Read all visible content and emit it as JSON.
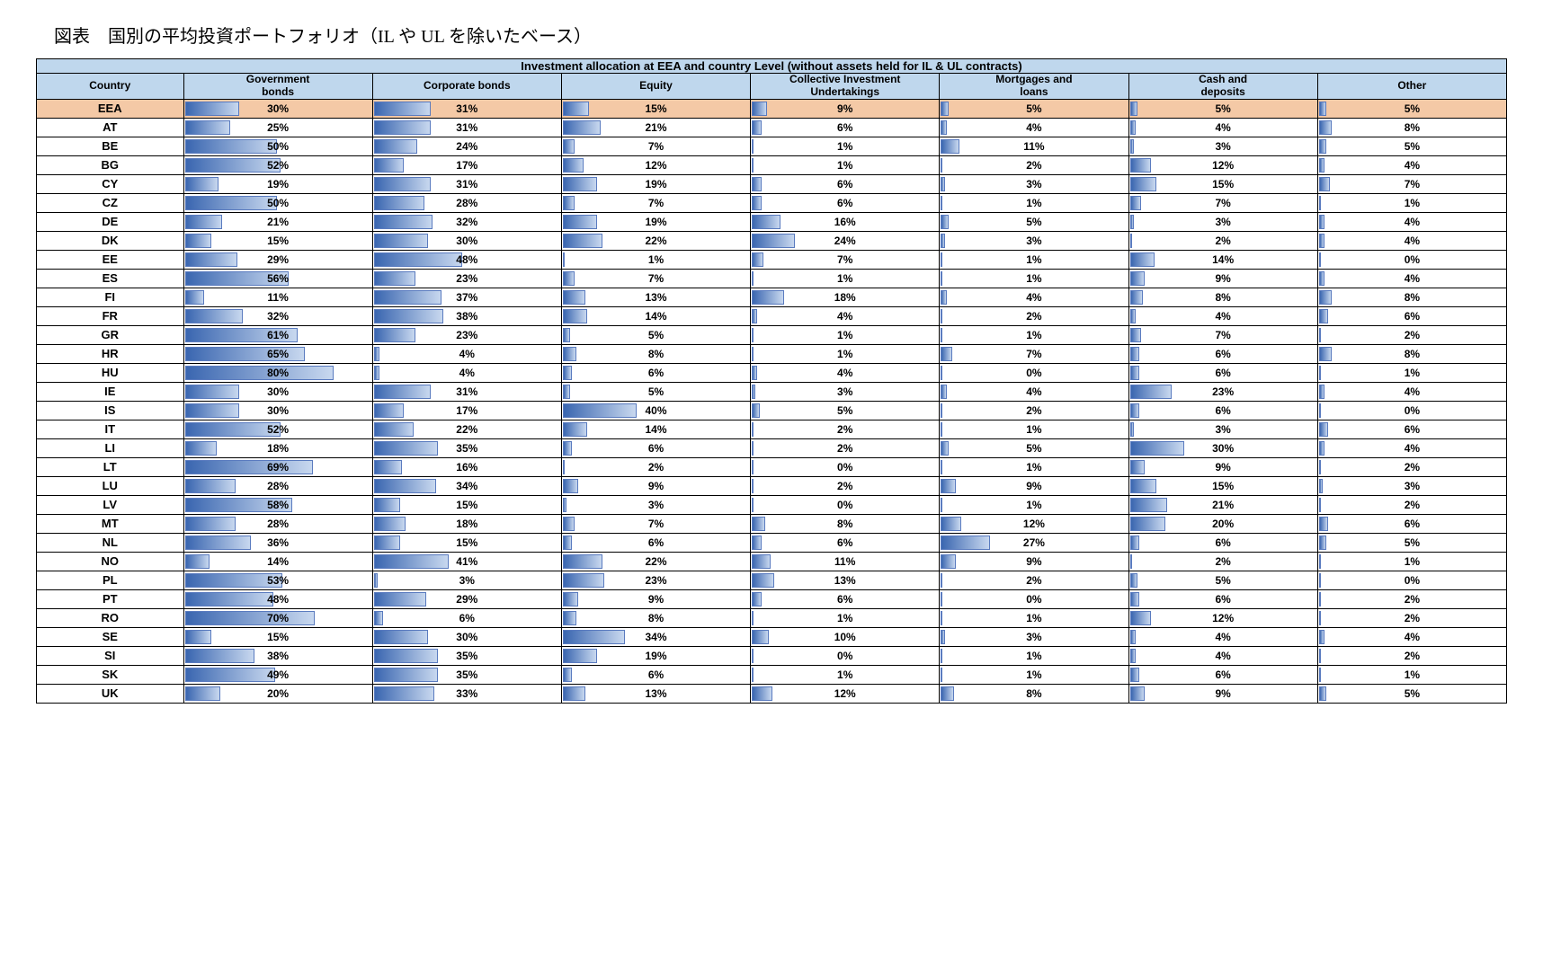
{
  "title_jp": "図表　国別の平均投資ポートフォリオ（IL や UL を除いたベース）",
  "banner": "Investment allocation at EEA and country Level (without assets held for IL & UL contracts)",
  "columns": [
    "Country",
    "Government bonds",
    "Corporate bonds",
    "Equity",
    "Collective Investment Undertakings",
    "Mortgages and loans",
    "Cash and deposits",
    "Other"
  ],
  "col_widths_pct": [
    10,
    12.857,
    12.857,
    12.857,
    12.857,
    12.857,
    12.857,
    12.857
  ],
  "colors": {
    "header_bg": "#bfd7ed",
    "eea_bg": "#f4c9a6",
    "row_bg": "#ffffff",
    "bar_grad_left": "#3a66b0",
    "bar_grad_right": "#c8d8ef",
    "bar_border": "#5a7bbf",
    "grid": "#000000"
  },
  "bar_max_scale": 100,
  "rows": [
    {
      "country": "EEA",
      "highlight": true,
      "values": [
        30,
        31,
        15,
        9,
        5,
        5,
        5
      ]
    },
    {
      "country": "AT",
      "values": [
        25,
        31,
        21,
        6,
        4,
        4,
        8
      ]
    },
    {
      "country": "BE",
      "values": [
        50,
        24,
        7,
        1,
        11,
        3,
        5
      ]
    },
    {
      "country": "BG",
      "values": [
        52,
        17,
        12,
        1,
        2,
        12,
        4
      ]
    },
    {
      "country": "CY",
      "values": [
        19,
        31,
        19,
        6,
        3,
        15,
        7
      ]
    },
    {
      "country": "CZ",
      "values": [
        50,
        28,
        7,
        6,
        1,
        7,
        1
      ]
    },
    {
      "country": "DE",
      "values": [
        21,
        32,
        19,
        16,
        5,
        3,
        4
      ]
    },
    {
      "country": "DK",
      "values": [
        15,
        30,
        22,
        24,
        3,
        2,
        4
      ]
    },
    {
      "country": "EE",
      "values": [
        29,
        48,
        1,
        7,
        1,
        14,
        0
      ]
    },
    {
      "country": "ES",
      "values": [
        56,
        23,
        7,
        1,
        1,
        9,
        4
      ]
    },
    {
      "country": "FI",
      "values": [
        11,
        37,
        13,
        18,
        4,
        8,
        8
      ]
    },
    {
      "country": "FR",
      "values": [
        32,
        38,
        14,
        4,
        2,
        4,
        6
      ]
    },
    {
      "country": "GR",
      "values": [
        61,
        23,
        5,
        1,
        1,
        7,
        2
      ]
    },
    {
      "country": "HR",
      "values": [
        65,
        4,
        8,
        1,
        7,
        6,
        8
      ]
    },
    {
      "country": "HU",
      "values": [
        80,
        4,
        6,
        4,
        0,
        6,
        1
      ]
    },
    {
      "country": "IE",
      "values": [
        30,
        31,
        5,
        3,
        4,
        23,
        4
      ]
    },
    {
      "country": "IS",
      "values": [
        30,
        17,
        40,
        5,
        2,
        6,
        0
      ]
    },
    {
      "country": "IT",
      "values": [
        52,
        22,
        14,
        2,
        1,
        3,
        6
      ]
    },
    {
      "country": "LI",
      "values": [
        18,
        35,
        6,
        2,
        5,
        30,
        4
      ]
    },
    {
      "country": "LT",
      "values": [
        69,
        16,
        2,
        0,
        1,
        9,
        2
      ]
    },
    {
      "country": "LU",
      "values": [
        28,
        34,
        9,
        2,
        9,
        15,
        3
      ]
    },
    {
      "country": "LV",
      "values": [
        58,
        15,
        3,
        0,
        1,
        21,
        2
      ]
    },
    {
      "country": "MT",
      "values": [
        28,
        18,
        7,
        8,
        12,
        20,
        6
      ]
    },
    {
      "country": "NL",
      "values": [
        36,
        15,
        6,
        6,
        27,
        6,
        5
      ]
    },
    {
      "country": "NO",
      "values": [
        14,
        41,
        22,
        11,
        9,
        2,
        1
      ]
    },
    {
      "country": "PL",
      "values": [
        53,
        3,
        23,
        13,
        2,
        5,
        0
      ]
    },
    {
      "country": "PT",
      "values": [
        48,
        29,
        9,
        6,
        0,
        6,
        2
      ]
    },
    {
      "country": "RO",
      "values": [
        70,
        6,
        8,
        1,
        1,
        12,
        2
      ]
    },
    {
      "country": "SE",
      "values": [
        15,
        30,
        34,
        10,
        3,
        4,
        4
      ]
    },
    {
      "country": "SI",
      "values": [
        38,
        35,
        19,
        0,
        1,
        4,
        2
      ]
    },
    {
      "country": "SK",
      "values": [
        49,
        35,
        6,
        1,
        1,
        6,
        1
      ]
    },
    {
      "country": "UK",
      "values": [
        20,
        33,
        13,
        12,
        8,
        9,
        5
      ]
    }
  ]
}
